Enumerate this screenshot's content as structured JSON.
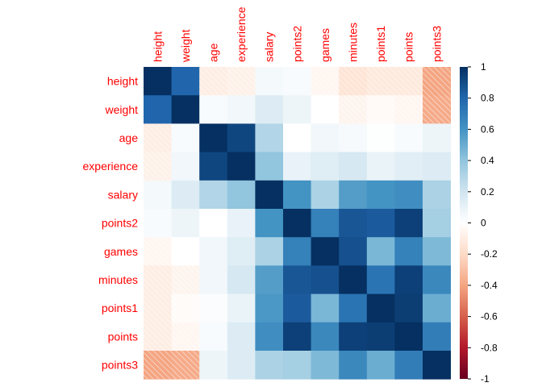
{
  "chart_data": {
    "type": "heatmap",
    "title": "",
    "method": "square",
    "variables": [
      "height",
      "weight",
      "age",
      "experience",
      "salary",
      "points2",
      "games",
      "minutes",
      "points1",
      "points",
      "points3"
    ],
    "matrix": [
      [
        1.0,
        0.8,
        -0.1,
        -0.08,
        0.05,
        0.03,
        -0.05,
        -0.15,
        -0.12,
        -0.12,
        -0.4
      ],
      [
        0.8,
        1.0,
        0.03,
        0.06,
        0.15,
        0.08,
        0.0,
        -0.06,
        -0.03,
        -0.05,
        -0.38
      ],
      [
        -0.1,
        0.03,
        1.0,
        0.92,
        0.3,
        0.0,
        0.06,
        0.04,
        0.01,
        0.03,
        0.08
      ],
      [
        -0.08,
        0.06,
        0.92,
        1.0,
        0.4,
        0.1,
        0.14,
        0.18,
        0.09,
        0.13,
        0.15
      ],
      [
        0.05,
        0.15,
        0.3,
        0.4,
        1.0,
        0.6,
        0.32,
        0.56,
        0.6,
        0.62,
        0.32
      ],
      [
        0.03,
        0.08,
        0.0,
        0.1,
        0.6,
        1.0,
        0.68,
        0.86,
        0.84,
        0.94,
        0.34
      ],
      [
        -0.05,
        0.0,
        0.06,
        0.14,
        0.32,
        0.68,
        1.0,
        0.88,
        0.46,
        0.68,
        0.45
      ],
      [
        -0.1,
        -0.06,
        0.06,
        0.18,
        0.56,
        0.86,
        0.88,
        1.0,
        0.74,
        0.94,
        0.65
      ],
      [
        -0.1,
        -0.02,
        0.02,
        0.09,
        0.58,
        0.84,
        0.46,
        0.74,
        1.0,
        0.95,
        0.5
      ],
      [
        -0.1,
        -0.05,
        0.03,
        0.15,
        0.62,
        0.94,
        0.65,
        0.94,
        0.95,
        1.0,
        0.7
      ],
      [
        -0.4,
        -0.38,
        0.08,
        0.15,
        0.32,
        0.34,
        0.45,
        0.65,
        0.5,
        0.7,
        1.0
      ]
    ],
    "colorbar": {
      "range": [
        -1,
        1
      ],
      "ticks": [
        "1",
        "0.8",
        "0.6",
        "0.4",
        "0.2",
        "0",
        "-0.2",
        "-0.4",
        "-0.6",
        "-0.8",
        "-1"
      ],
      "tick_values": [
        1,
        0.8,
        0.6,
        0.4,
        0.2,
        0,
        -0.2,
        -0.4,
        -0.6,
        -0.8,
        -1
      ],
      "palette": [
        "#67001F",
        "#B2182B",
        "#D6604D",
        "#F4A582",
        "#FDDBC7",
        "#FFFFFF",
        "#D1E5F0",
        "#92C5DE",
        "#4393C3",
        "#2166AC",
        "#053061"
      ]
    },
    "label_color": "#FF0000",
    "negative_cells_hatched": true,
    "grid": false
  }
}
